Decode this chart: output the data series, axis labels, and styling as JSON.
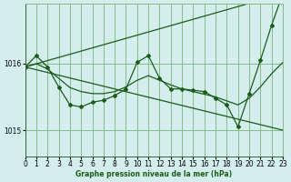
{
  "bg_color": "#d4eeee",
  "grid_color": "#88bb88",
  "line_color": "#1a5c1a",
  "xlabel": "Graphe pression niveau de la mer (hPa)",
  "ylim": [
    1014.6,
    1016.9
  ],
  "xlim": [
    0,
    23
  ],
  "yticks": [
    1015,
    1016
  ],
  "xticks": [
    0,
    1,
    2,
    3,
    4,
    5,
    6,
    7,
    8,
    9,
    10,
    11,
    12,
    13,
    14,
    15,
    16,
    17,
    18,
    19,
    20,
    21,
    22,
    23
  ],
  "line_upper": {
    "x": [
      0,
      23
    ],
    "y": [
      1015.95,
      1017.05
    ]
  },
  "line_lower": {
    "x": [
      0,
      23
    ],
    "y": [
      1015.95,
      1015.0
    ]
  },
  "line_zigzag": {
    "x": [
      0,
      1,
      2,
      3,
      4,
      5,
      6,
      7,
      8,
      9,
      10,
      11,
      12,
      13,
      14,
      15,
      16,
      17,
      18,
      19,
      20,
      21,
      22,
      23
    ],
    "y": [
      1015.95,
      1016.12,
      1015.95,
      1015.65,
      1015.38,
      1015.35,
      1015.42,
      1015.45,
      1015.52,
      1015.62,
      1016.02,
      1016.12,
      1015.78,
      1015.62,
      1015.62,
      1015.6,
      1015.58,
      1015.48,
      1015.38,
      1015.05,
      1015.55,
      1016.05,
      1016.58,
      1017.05
    ]
  },
  "line_smooth": {
    "x": [
      0,
      1,
      2,
      3,
      4,
      5,
      6,
      7,
      8,
      9,
      10,
      11,
      12,
      13,
      14,
      15,
      16,
      17,
      18,
      19,
      20,
      21,
      22,
      23
    ],
    "y": [
      1015.95,
      1016.0,
      1015.92,
      1015.78,
      1015.64,
      1015.58,
      1015.55,
      1015.55,
      1015.58,
      1015.65,
      1015.75,
      1015.82,
      1015.75,
      1015.68,
      1015.62,
      1015.58,
      1015.54,
      1015.5,
      1015.44,
      1015.38,
      1015.48,
      1015.65,
      1015.85,
      1016.02
    ]
  }
}
